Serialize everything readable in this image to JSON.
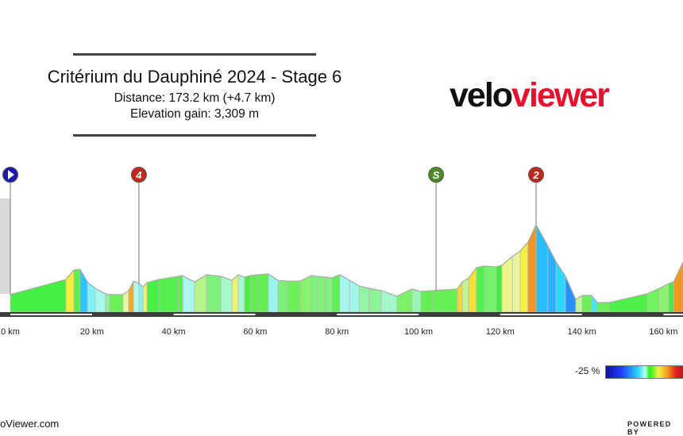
{
  "header": {
    "title": "Critérium du Dauphiné 2024 - Stage 6",
    "distance": "Distance: 173.2 km (+4.7 km)",
    "elevation_gain": "Elevation gain: 3,309 m"
  },
  "logo": {
    "part1": "velo",
    "part2": "viewer",
    "colors": [
      "#111111",
      "#e8112d"
    ]
  },
  "legend": {
    "min_label": "-25 %",
    "colormap": "gradient % blue-cyan-green-yellow-red"
  },
  "footer": {
    "left": "VeloViewer.com",
    "right": "POWERED BY"
  },
  "chart_data": {
    "type": "area",
    "xlabel": "",
    "ylabel": "",
    "x_unit": "km",
    "x_ticks": [
      0,
      20,
      40,
      60,
      80,
      100,
      120,
      140,
      160
    ],
    "x_tick_labels": [
      "0 km",
      "20 km",
      "40 km",
      "60 km",
      "80 km",
      "100 km",
      "120 km",
      "140 km",
      "160 km"
    ],
    "xlim": [
      0,
      173.2
    ],
    "profile_km": [
      0,
      13.6,
      15.6,
      17.1,
      18.9,
      20.8,
      23.3,
      24.3,
      27.6,
      29.0,
      30.2,
      31.5,
      32.5,
      33.5,
      36.4,
      41.1,
      42.2,
      45.1,
      48.1,
      51.6,
      54.3,
      55.8,
      57.4,
      58.8,
      60.7,
      63.2,
      65.6,
      67.9,
      71.0,
      73.7,
      75.3,
      77.2,
      78.8,
      80.7,
      83.1,
      85.4,
      87.9,
      90.9,
      94.7,
      98.4,
      100.6,
      103.5,
      109.5,
      110.7,
      112.3,
      114.2,
      116.1,
      119.1,
      120.4,
      123.0,
      124.9,
      126.8,
      128.8,
      131.7,
      133.7,
      136.0,
      138.5,
      140.1,
      142.4,
      143.8,
      146.7,
      156.0,
      159.0,
      161.3,
      162.5,
      164.8
    ],
    "profile_elev_m": [
      387,
      549,
      651,
      659,
      523,
      455,
      396,
      387,
      387,
      430,
      532,
      506,
      472,
      515,
      549,
      583,
      591,
      523,
      600,
      583,
      540,
      600,
      574,
      591,
      600,
      608,
      540,
      532,
      532,
      591,
      583,
      574,
      566,
      600,
      540,
      481,
      455,
      430,
      370,
      447,
      421,
      430,
      447,
      523,
      566,
      676,
      693,
      685,
      702,
      795,
      855,
      948,
      1135,
      906,
      736,
      583,
      336,
      379,
      379,
      302,
      302,
      396,
      455,
      506,
      523,
      736
    ],
    "markers": [
      {
        "type": "start",
        "km": 0,
        "label": "",
        "color": "#1a1aa8"
      },
      {
        "type": "climb",
        "km": 31.5,
        "label": "4",
        "color": "#c0281e"
      },
      {
        "type": "sprint",
        "km": 104.3,
        "label": "S",
        "color": "#4f8a2a"
      },
      {
        "type": "climb",
        "km": 128.8,
        "label": "2",
        "color": "#c0281e"
      }
    ]
  }
}
